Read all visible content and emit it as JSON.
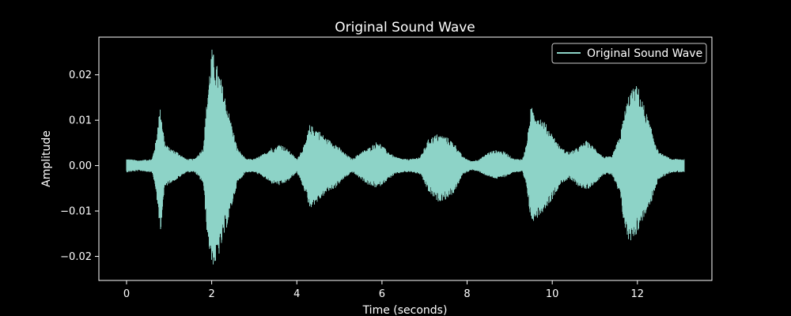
{
  "chart_data": {
    "type": "line",
    "title": "Original Sound Wave",
    "xlabel": "Time (seconds)",
    "ylabel": "Amplitude",
    "xlim": [
      -0.65,
      13.75
    ],
    "ylim": [
      -0.0253,
      0.0283
    ],
    "xticks": [
      0,
      2,
      4,
      6,
      8,
      10,
      12
    ],
    "xtick_labels": [
      "0",
      "2",
      "4",
      "6",
      "8",
      "10",
      "12"
    ],
    "yticks": [
      0.02,
      0.01,
      0.0,
      -0.01,
      -0.02
    ],
    "ytick_labels": [
      "0.02",
      "0.01",
      "0.00",
      "−0.01",
      "−0.02"
    ],
    "grid": false,
    "legend_position": "top-right",
    "background_color": "#000000",
    "series": [
      {
        "name": "Original Sound Wave",
        "color": "#8dd3c7",
        "envelope": {
          "t": [
            0.0,
            0.3,
            0.6,
            0.7,
            0.75,
            0.8,
            0.85,
            0.9,
            1.0,
            1.2,
            1.4,
            1.6,
            1.8,
            1.9,
            2.0,
            2.1,
            2.2,
            2.4,
            2.6,
            2.8,
            3.0,
            3.2,
            3.4,
            3.5,
            3.6,
            3.8,
            4.0,
            4.2,
            4.3,
            4.5,
            4.7,
            4.9,
            5.1,
            5.3,
            5.5,
            5.7,
            5.9,
            6.1,
            6.3,
            6.5,
            6.7,
            6.9,
            7.1,
            7.3,
            7.5,
            7.7,
            7.9,
            8.1,
            8.3,
            8.5,
            8.7,
            8.9,
            9.1,
            9.3,
            9.4,
            9.5,
            9.6,
            9.8,
            10.0,
            10.2,
            10.4,
            10.6,
            10.8,
            11.0,
            11.2,
            11.4,
            11.6,
            11.7,
            11.8,
            12.0,
            12.1,
            12.3,
            12.5,
            12.8,
            13.0,
            13.1
          ],
          "upper": [
            0.0015,
            0.0012,
            0.0015,
            0.006,
            0.011,
            0.013,
            0.009,
            0.005,
            0.004,
            0.003,
            0.0015,
            0.0015,
            0.004,
            0.016,
            0.026,
            0.023,
            0.02,
            0.012,
            0.004,
            0.0015,
            0.0015,
            0.0025,
            0.004,
            0.004,
            0.005,
            0.0035,
            0.0015,
            0.005,
            0.009,
            0.008,
            0.006,
            0.005,
            0.003,
            0.0015,
            0.003,
            0.004,
            0.0055,
            0.0035,
            0.002,
            0.0015,
            0.0015,
            0.002,
            0.006,
            0.007,
            0.0065,
            0.005,
            0.002,
            0.001,
            0.0015,
            0.003,
            0.0035,
            0.003,
            0.0015,
            0.0015,
            0.005,
            0.013,
            0.012,
            0.01,
            0.007,
            0.004,
            0.003,
            0.004,
            0.0055,
            0.004,
            0.002,
            0.002,
            0.007,
            0.012,
            0.016,
            0.018,
            0.015,
            0.009,
            0.003,
            0.0015,
            0.0015,
            0.0015
          ],
          "lower": [
            -0.0015,
            -0.0012,
            -0.0015,
            -0.006,
            -0.012,
            -0.0145,
            -0.009,
            -0.005,
            -0.004,
            -0.003,
            -0.0015,
            -0.0015,
            -0.004,
            -0.016,
            -0.022,
            -0.022,
            -0.019,
            -0.012,
            -0.004,
            -0.0015,
            -0.0015,
            -0.0025,
            -0.004,
            -0.004,
            -0.0045,
            -0.0035,
            -0.0015,
            -0.006,
            -0.0095,
            -0.008,
            -0.006,
            -0.005,
            -0.003,
            -0.0015,
            -0.003,
            -0.0045,
            -0.005,
            -0.0035,
            -0.002,
            -0.0015,
            -0.0015,
            -0.002,
            -0.006,
            -0.008,
            -0.0075,
            -0.006,
            -0.002,
            -0.001,
            -0.0015,
            -0.0025,
            -0.003,
            -0.0025,
            -0.0015,
            -0.0015,
            -0.005,
            -0.0125,
            -0.012,
            -0.01,
            -0.0075,
            -0.004,
            -0.003,
            -0.0045,
            -0.0055,
            -0.004,
            -0.002,
            -0.002,
            -0.007,
            -0.014,
            -0.017,
            -0.015,
            -0.0125,
            -0.009,
            -0.003,
            -0.0015,
            -0.0015,
            -0.0015
          ]
        }
      }
    ]
  }
}
